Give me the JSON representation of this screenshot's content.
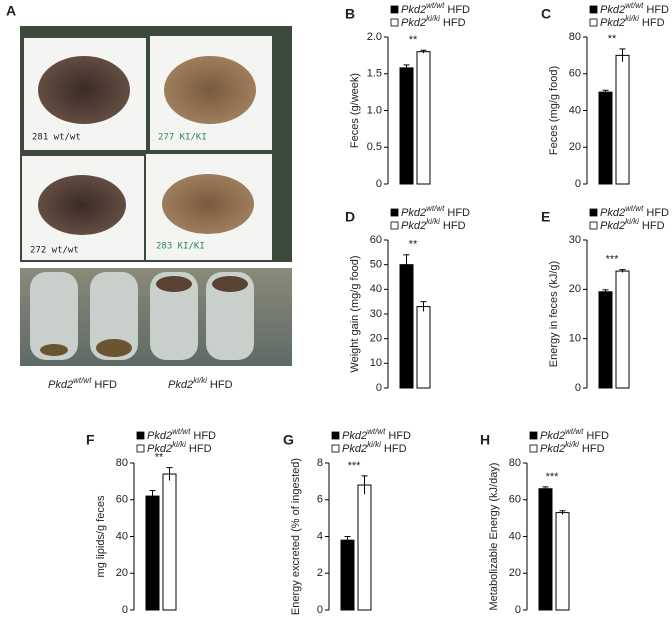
{
  "panel_a": {
    "panel": "A",
    "tray_labels": [
      "281 wt/wt",
      "277 KI/KI",
      "272 wt/wt",
      "283 KI/KI"
    ],
    "captions": [
      "Pkd2wt/wt HFD",
      "Pkd2ki/ki HFD"
    ]
  },
  "chart_data": [
    {
      "type": "bar",
      "panel": "B",
      "y_label": "Feces (g/week)",
      "annotation": "**",
      "series": [
        {
          "name": "Pkd2wt/wt HFD",
          "color": "#000000",
          "values": [
            1.58
          ],
          "error": [
            0.04
          ]
        },
        {
          "name": "Pkd2ki/ki HFD",
          "color": "#ffffff",
          "values": [
            1.8
          ],
          "error": [
            0.02
          ]
        }
      ],
      "ylim": [
        0,
        2
      ],
      "yticks": [
        0,
        0.5,
        {
          "value": 1,
          "label": "1.0"
        },
        1.5,
        {
          "value": 2,
          "label": "2.0"
        }
      ]
    },
    {
      "type": "bar",
      "panel": "C",
      "y_label": "Feces (mg/g food)",
      "annotation": "**",
      "series": [
        {
          "name": "Pkd2wt/wt HFD",
          "color": "#000000",
          "values": [
            50
          ],
          "error": [
            1
          ]
        },
        {
          "name": "Pkd2ki/ki HFD",
          "color": "#ffffff",
          "values": [
            70
          ],
          "error": [
            3.5
          ]
        }
      ],
      "ylim": [
        0,
        80
      ],
      "yticks": [
        0,
        20,
        40,
        60,
        80
      ]
    },
    {
      "type": "bar",
      "panel": "D",
      "y_label": "Weight gain (mg/g food)",
      "annotation": "**",
      "series": [
        {
          "name": "Pkd2wt/wt HFD",
          "color": "#000000",
          "values": [
            50
          ],
          "error": [
            4
          ]
        },
        {
          "name": "Pkd2ki/ki HFD",
          "color": "#ffffff",
          "values": [
            33
          ],
          "error": [
            2
          ]
        }
      ],
      "ylim": [
        0,
        60
      ],
      "yticks": [
        0,
        10,
        20,
        30,
        40,
        50,
        60
      ]
    },
    {
      "type": "bar",
      "panel": "E",
      "y_label": "Energy in feces (kJ/g)",
      "annotation": "***",
      "series": [
        {
          "name": "Pkd2wt/wt HFD",
          "color": "#000000",
          "values": [
            19.5
          ],
          "error": [
            0.4
          ]
        },
        {
          "name": "Pkd2ki/ki HFD",
          "color": "#ffffff",
          "values": [
            23.7
          ],
          "error": [
            0.3
          ]
        }
      ],
      "ylim": [
        0,
        30
      ],
      "yticks": [
        0,
        10,
        20,
        30
      ]
    },
    {
      "type": "bar",
      "panel": "F",
      "y_label": "mg lipids/g feces",
      "annotation": "**",
      "series": [
        {
          "name": "Pkd2wt/wt HFD",
          "color": "#000000",
          "values": [
            62
          ],
          "error": [
            3
          ]
        },
        {
          "name": "Pkd2ki/ki HFD",
          "color": "#ffffff",
          "values": [
            74
          ],
          "error": [
            3.5
          ]
        }
      ],
      "ylim": [
        0,
        80
      ],
      "yticks": [
        0,
        20,
        40,
        60,
        80
      ]
    },
    {
      "type": "bar",
      "panel": "G",
      "y_label": "Energy excreted (% of ingested)",
      "annotation": "***",
      "series": [
        {
          "name": "Pkd2wt/wt HFD",
          "color": "#000000",
          "values": [
            3.8
          ],
          "error": [
            0.2
          ]
        },
        {
          "name": "Pkd2ki/ki HFD",
          "color": "#ffffff",
          "values": [
            6.8
          ],
          "error": [
            0.5
          ]
        }
      ],
      "ylim": [
        0,
        8
      ],
      "yticks": [
        0,
        2,
        4,
        6,
        8
      ]
    },
    {
      "type": "bar",
      "panel": "H",
      "y_label": "Metabolizable Energy (kJ/day)",
      "annotation": "***",
      "series": [
        {
          "name": "Pkd2wt/wt HFD",
          "color": "#000000",
          "values": [
            66
          ],
          "error": [
            1
          ]
        },
        {
          "name": "Pkd2ki/ki HFD",
          "color": "#ffffff",
          "values": [
            53
          ],
          "error": [
            1
          ]
        }
      ],
      "ylim": [
        0,
        80
      ],
      "yticks": [
        0,
        20,
        40,
        60,
        80
      ]
    }
  ]
}
